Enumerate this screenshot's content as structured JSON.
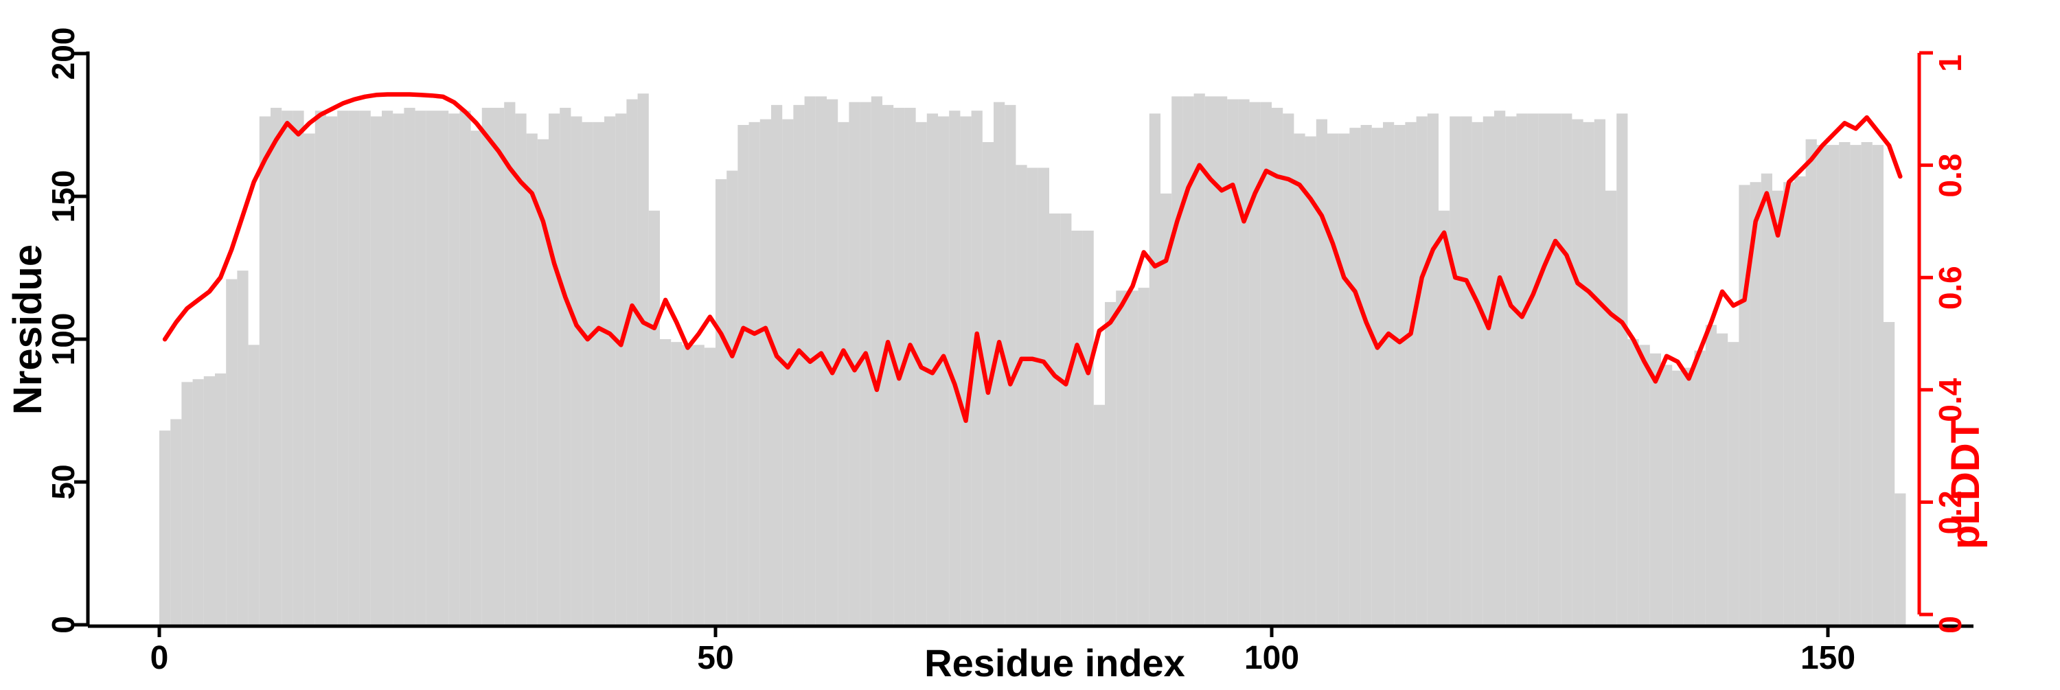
{
  "chart_data": {
    "type": "bar",
    "subtype": "dual-axis bar+line",
    "title": "",
    "xlabel": "Residue index",
    "ylabel_left": "Nresidue",
    "ylabel_right": "pLDDT",
    "n_residues": 157,
    "x_axis": {
      "ticks": [
        0,
        50,
        100,
        150
      ],
      "range": [
        0,
        157
      ]
    },
    "left_axis": {
      "label": "Nresidue",
      "ticks": [
        0,
        50,
        100,
        150,
        200
      ],
      "range": [
        0,
        200
      ]
    },
    "right_axis": {
      "label": "pLDDT",
      "ticks": [
        0,
        0.2,
        0.4,
        0.6,
        0.8,
        1
      ],
      "range": [
        0,
        1
      ]
    },
    "grid": false,
    "legend": "none",
    "colors": {
      "bar": "#d3d3d3",
      "line": "#ff0000",
      "axis_left": "#000000",
      "axis_right": "#ff0000"
    },
    "series": [
      {
        "name": "Nresidue",
        "type": "bar",
        "axis": "left",
        "color": "#d3d3d3",
        "values": [
          68,
          72,
          85,
          86,
          87,
          88,
          121,
          124,
          98,
          178,
          181,
          180,
          180,
          172,
          180,
          178,
          180,
          180,
          180,
          178,
          180,
          179,
          181,
          180,
          180,
          180,
          179,
          180,
          173,
          181,
          181,
          183,
          179,
          172,
          170,
          179,
          181,
          178,
          176,
          176,
          178,
          179,
          184,
          186,
          145,
          100,
          99,
          98,
          98,
          97,
          156,
          159,
          175,
          176,
          177,
          182,
          177,
          182,
          185,
          185,
          184,
          176,
          183,
          183,
          185,
          182,
          181,
          181,
          176,
          179,
          178,
          180,
          178,
          180,
          169,
          183,
          182,
          161,
          160,
          160,
          144,
          144,
          138,
          138,
          77,
          113,
          117,
          117,
          118,
          179,
          151,
          185,
          185,
          186,
          185,
          185,
          184,
          184,
          183,
          183,
          181,
          179,
          172,
          171,
          177,
          172,
          172,
          174,
          175,
          174,
          176,
          175,
          176,
          178,
          179,
          145,
          178,
          178,
          176,
          178,
          180,
          178,
          179,
          179,
          179,
          179,
          179,
          177,
          176,
          177,
          152,
          179,
          100,
          98,
          95,
          91,
          89,
          90,
          96,
          105,
          102,
          99,
          154,
          155,
          158,
          152,
          155,
          157,
          170,
          168,
          168,
          169,
          168,
          169,
          168,
          106,
          46
        ]
      },
      {
        "name": "pLDDT",
        "type": "line",
        "axis": "right",
        "color": "#ff0000",
        "values": [
          0.49,
          0.52,
          0.545,
          0.56,
          0.575,
          0.6,
          0.65,
          0.71,
          0.77,
          0.81,
          0.845,
          0.875,
          0.855,
          0.875,
          0.89,
          0.9,
          0.91,
          0.917,
          0.922,
          0.925,
          0.926,
          0.926,
          0.926,
          0.925,
          0.924,
          0.922,
          0.912,
          0.895,
          0.875,
          0.85,
          0.825,
          0.795,
          0.77,
          0.75,
          0.7,
          0.625,
          0.565,
          0.515,
          0.49,
          0.51,
          0.5,
          0.48,
          0.55,
          0.52,
          0.51,
          0.56,
          0.52,
          0.475,
          0.5,
          0.53,
          0.5,
          0.46,
          0.51,
          0.5,
          0.51,
          0.46,
          0.44,
          0.47,
          0.45,
          0.465,
          0.43,
          0.47,
          0.435,
          0.465,
          0.4,
          0.485,
          0.42,
          0.48,
          0.44,
          0.43,
          0.46,
          0.41,
          0.345,
          0.5,
          0.395,
          0.485,
          0.41,
          0.455,
          0.455,
          0.45,
          0.425,
          0.41,
          0.48,
          0.43,
          0.505,
          0.52,
          0.55,
          0.585,
          0.645,
          0.62,
          0.63,
          0.7,
          0.76,
          0.8,
          0.775,
          0.755,
          0.765,
          0.7,
          0.75,
          0.79,
          0.78,
          0.775,
          0.765,
          0.74,
          0.71,
          0.66,
          0.6,
          0.575,
          0.52,
          0.475,
          0.5,
          0.485,
          0.5,
          0.6,
          0.65,
          0.68,
          0.6,
          0.595,
          0.555,
          0.51,
          0.6,
          0.55,
          0.53,
          0.57,
          0.62,
          0.665,
          0.64,
          0.59,
          0.575,
          0.555,
          0.535,
          0.52,
          0.49,
          0.45,
          0.415,
          0.46,
          0.45,
          0.42,
          0.47,
          0.52,
          0.575,
          0.55,
          0.56,
          0.7,
          0.75,
          0.675,
          0.77,
          0.79,
          0.81,
          0.835,
          0.855,
          0.875,
          0.865,
          0.885,
          0.86,
          0.835,
          0.78
        ]
      }
    ]
  }
}
